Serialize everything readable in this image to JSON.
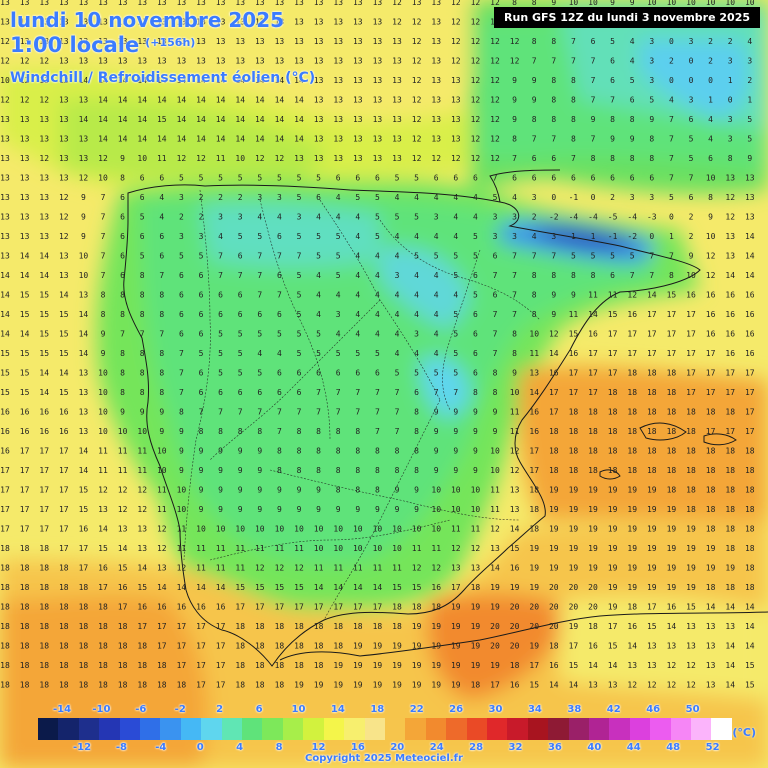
{
  "header": {
    "title_line1": "lundi 10 novembre 2025",
    "title_line2": "1:00 locale",
    "lead_time": "(+156h)",
    "parameter": "Windchill / Refroidissement éolien (°C)",
    "run_label": "Run GFS 12Z du lundi 3 novembre 2025"
  },
  "legend": {
    "top_labels": [
      "-14",
      "-10",
      "-6",
      "-2",
      "2",
      "6",
      "10",
      "14",
      "18",
      "22",
      "26",
      "30",
      "34",
      "38",
      "42",
      "46",
      "50"
    ],
    "bottom_labels": [
      "-12",
      "-8",
      "-4",
      "0",
      "4",
      "8",
      "12",
      "16",
      "20",
      "24",
      "28",
      "32",
      "36",
      "40",
      "44",
      "48",
      "52"
    ],
    "unit": "(°C)",
    "colors": [
      "#0b1a4a",
      "#14246b",
      "#1e2f8d",
      "#2436b4",
      "#2a4bd6",
      "#2f6fe8",
      "#3a93f0",
      "#45b8f5",
      "#5fd6ee",
      "#60e6b4",
      "#5fe37a",
      "#7de85a",
      "#a7ee4a",
      "#d2f23e",
      "#f4f54a",
      "#f7ef6e",
      "#f8e48a",
      "#f6c54c",
      "#f4a638",
      "#f28a2e",
      "#ee6a2a",
      "#ea4a26",
      "#e0282a",
      "#c81a2a",
      "#a8141f",
      "#8e1a34",
      "#9a2068",
      "#b02494",
      "#c830be",
      "#dc40de",
      "#ec5cf0",
      "#f686f6",
      "#fbb4fb",
      "#ffffff"
    ]
  },
  "copyright": "Copyright 2025 Meteociel.fr",
  "grid_values": [
    "13 13 13 13 13 13 13 13 13 13 13 13 13 13 13 13 13 13 13 13 12 13 13 12 12 12 8 8 9 10 10 9 9 10 10 10 10 10 10",
    "13 13 13 13 13 13 13 13 13 13 13 13 13 13 13 13 13 13 13 13 12 12 13 12 12 12 8 8 8 7 6 5 4 3 4 2 4 3 4",
    "12 13 13 13 13 13 13 13 13 13 13 13 13 13 13 13 13 13 13 13 13 12 13 12 12 12 12 8 8 7 6 5 4 3 0 3 2 2 4",
    "12 12 12 13 13 13 13 13 13 13 13 13 13 13 13 13 13 13 13 13 13 12 13 12 12 12 12 7 7 7 7 6 4 3 2 0 2 3 3",
    "10 12 13 13 14 14 14 14 14 14 14 14 14 14 14 14 13 13 13 13 13 12 13 13 12 12 9 9 8 8 7 6 5 3 0 0 0 1 2",
    "12 12 12 13 13 14 14 14 14 14 14 14 14 14 14 14 13 13 13 13 13 12 13 13 12 12 9 9 8 8 7 7 6 5 4 3 1 0 1",
    "13 13 13 13 14 14 14 14 15 14 14 14 14 14 14 14 13 13 13 13 13 12 13 13 12 12 9 8 8 8 9 8 8 9 7 6 4 3 5",
    "13 13 13 13 13 14 14 14 14 14 14 14 14 14 14 14 13 13 13 13 13 12 13 13 12 12 8 7 7 8 7 9 9 8 7 5 4 3 5",
    "13 13 12 13 13 12 9 10 11 12 12 11 10 12 12 13 13 13 13 13 13 12 12 12 12 12 7 6 6 7 8 8 8 8 7 5 6 8 9",
    "13 13 13 13 12 10 8 6 6 5 5 5 5 5 5 5 5 6 6 6 5 5 6 6 6 7 6 6 6 6 6 6 6 6 7 7 10 13 13",
    "13 13 13 12 9 7 6 6 4 3 2 2 2 3 3 5 6 4 5 5 4 4 4 4 4 5 4 3 0 -1 0 2 3 3 5 6 8 12 13",
    "13 13 13 12 9 7 6 5 4 2 2 3 3 4 4 3 4 4 4 5 5 5 3 4 4 3 3 2 -2 -4 -4 -5 -4 -3 0 2 9 12 13",
    "13 13 13 12 9 7 6 6 6 3 3 4 5 5 6 5 5 5 4 5 4 4 4 4 5 3 3 4 3 1 1 -1 -2 0 1 2 10 13 14",
    "13 14 14 13 10 7 6 5 6 5 5 7 6 7 7 7 5 5 4 4 4 5 5 5 5 6 7 7 7 5 5 5 5 7 7 9 12 13 14",
    "14 14 14 13 10 7 6 8 7 6 6 7 7 7 6 5 4 5 4 4 3 4 4 5 6 7 7 8 8 8 8 6 7 7 8 10 12 14 14",
    "14 15 15 14 13 8 8 8 8 6 6 6 6 7 7 5 4 4 4 4 4 4 4 4 5 6 7 8 9 9 11 11 12 14 15 16 16 16 16",
    "14 15 15 15 14 8 8 8 8 6 6 6 6 6 6 5 4 3 4 4 4 4 4 5 6 7 7 8 9 11 14 15 16 17 17 17 16 16 16",
    "14 14 15 15 14 9 7 7 7 6 6 5 5 5 5 5 5 4 4 4 4 3 4 5 6 7 8 10 12 15 16 17 17 17 17 17 16 16 16",
    "15 15 15 15 14 9 8 8 8 7 5 5 5 4 4 5 5 5 5 5 4 4 4 5 6 7 8 11 14 16 17 17 17 17 17 17 17 16 16",
    "15 15 14 14 13 10 8 8 8 7 6 5 5 5 6 6 6 6 6 6 5 5 5 5 6 8 9 13 16 17 17 17 18 18 18 17 17 17 17",
    "15 15 14 15 13 10 8 8 8 7 6 6 6 6 6 6 7 7 7 7 7 6 7 7 8 8 10 14 17 17 17 18 18 18 18 17 17 17 17",
    "16 16 16 16 13 10 9 9 9 8 7 7 7 7 7 7 7 7 7 7 7 8 9 9 9 9 11 16 17 18 18 18 18 18 18 18 18 18 17",
    "16 16 16 16 13 10 10 10 9 9 8 8 8 8 7 8 8 8 8 7 7 8 9 9 9 9 11 16 18 18 18 18 18 18 18 18 17 17 17",
    "16 17 17 17 14 11 11 11 10 9 9 9 9 9 8 8 8 8 8 8 8 8 9 9 9 10 12 17 18 18 18 18 18 18 18 18 18 18 18",
    "17 17 17 17 14 11 11 11 10 9 9 9 9 9 8 8 8 8 8 8 8 8 9 9 9 10 12 17 18 18 18 18 18 18 18 18 18 18 18",
    "17 17 17 17 15 12 12 12 11 10 9 9 9 9 9 9 9 8 8 8 9 9 10 10 10 11 13 18 19 19 19 19 19 19 18 18 18 18 18",
    "17 17 17 17 15 13 12 12 11 10 9 9 9 9 9 9 9 9 9 9 9 9 10 10 10 11 13 18 19 19 19 19 19 19 19 18 18 18 18",
    "17 17 17 17 16 14 13 13 12 11 10 10 10 10 10 10 10 10 10 10 10 10 10 11 11 12 14 18 19 19 19 19 19 19 19 19 18 18 18",
    "18 18 18 17 17 15 14 13 12 11 11 11 11 11 11 11 10 10 10 10 10 11 11 12 12 13 15 19 19 19 19 19 19 19 19 19 19 18 18",
    "18 18 18 18 17 16 15 14 13 12 11 11 11 12 12 12 11 11 11 11 11 12 12 13 13 14 16 19 19 19 19 19 19 19 19 19 19 19 18",
    "18 18 18 18 18 17 16 15 14 14 14 14 15 15 15 15 14 14 14 14 15 15 16 17 18 19 19 19 20 20 20 19 19 19 19 19 18 18 18",
    "18 18 18 18 18 18 17 16 16 16 16 16 17 17 17 17 17 17 17 17 18 18 18 19 19 19 20 20 20 20 20 19 18 17 16 15 14 14 14",
    "18 18 18 18 18 18 18 17 17 17 17 17 18 18 18 18 18 18 18 18 18 19 19 19 19 20 20 20 20 19 18 17 16 15 14 13 13 13 14",
    "18 18 18 18 18 18 18 18 17 17 17 17 18 18 18 18 18 18 19 19 19 19 19 19 19 20 20 19 18 17 16 15 14 13 13 13 13 14 14",
    "18 18 18 18 18 18 18 18 18 17 17 17 18 18 18 18 18 19 19 19 19 19 19 19 19 19 18 17 16 15 14 14 13 13 12 12 13 14 15",
    "18 18 18 18 18 18 18 18 18 18 17 17 18 18 18 19 19 19 19 19 19 19 19 19 18 17 16 15 14 14 13 13 12 12 12 12 13 14 15",
    "18 18 18 18 18 18 18 18 18 18 18 18 18 18 18 19 19 19 19 19 19 19 19 18 17 16 15 14 14 13 13 12 12 12 12 13 13 14 15",
    "19 19 19 19 19 19 19 19 19 19 19 19 19 19 19 19 19 19 19 19 19 19 19 18 17 16 15 14 13 13 12 12 12 12 12 13 13 14 15"
  ]
}
